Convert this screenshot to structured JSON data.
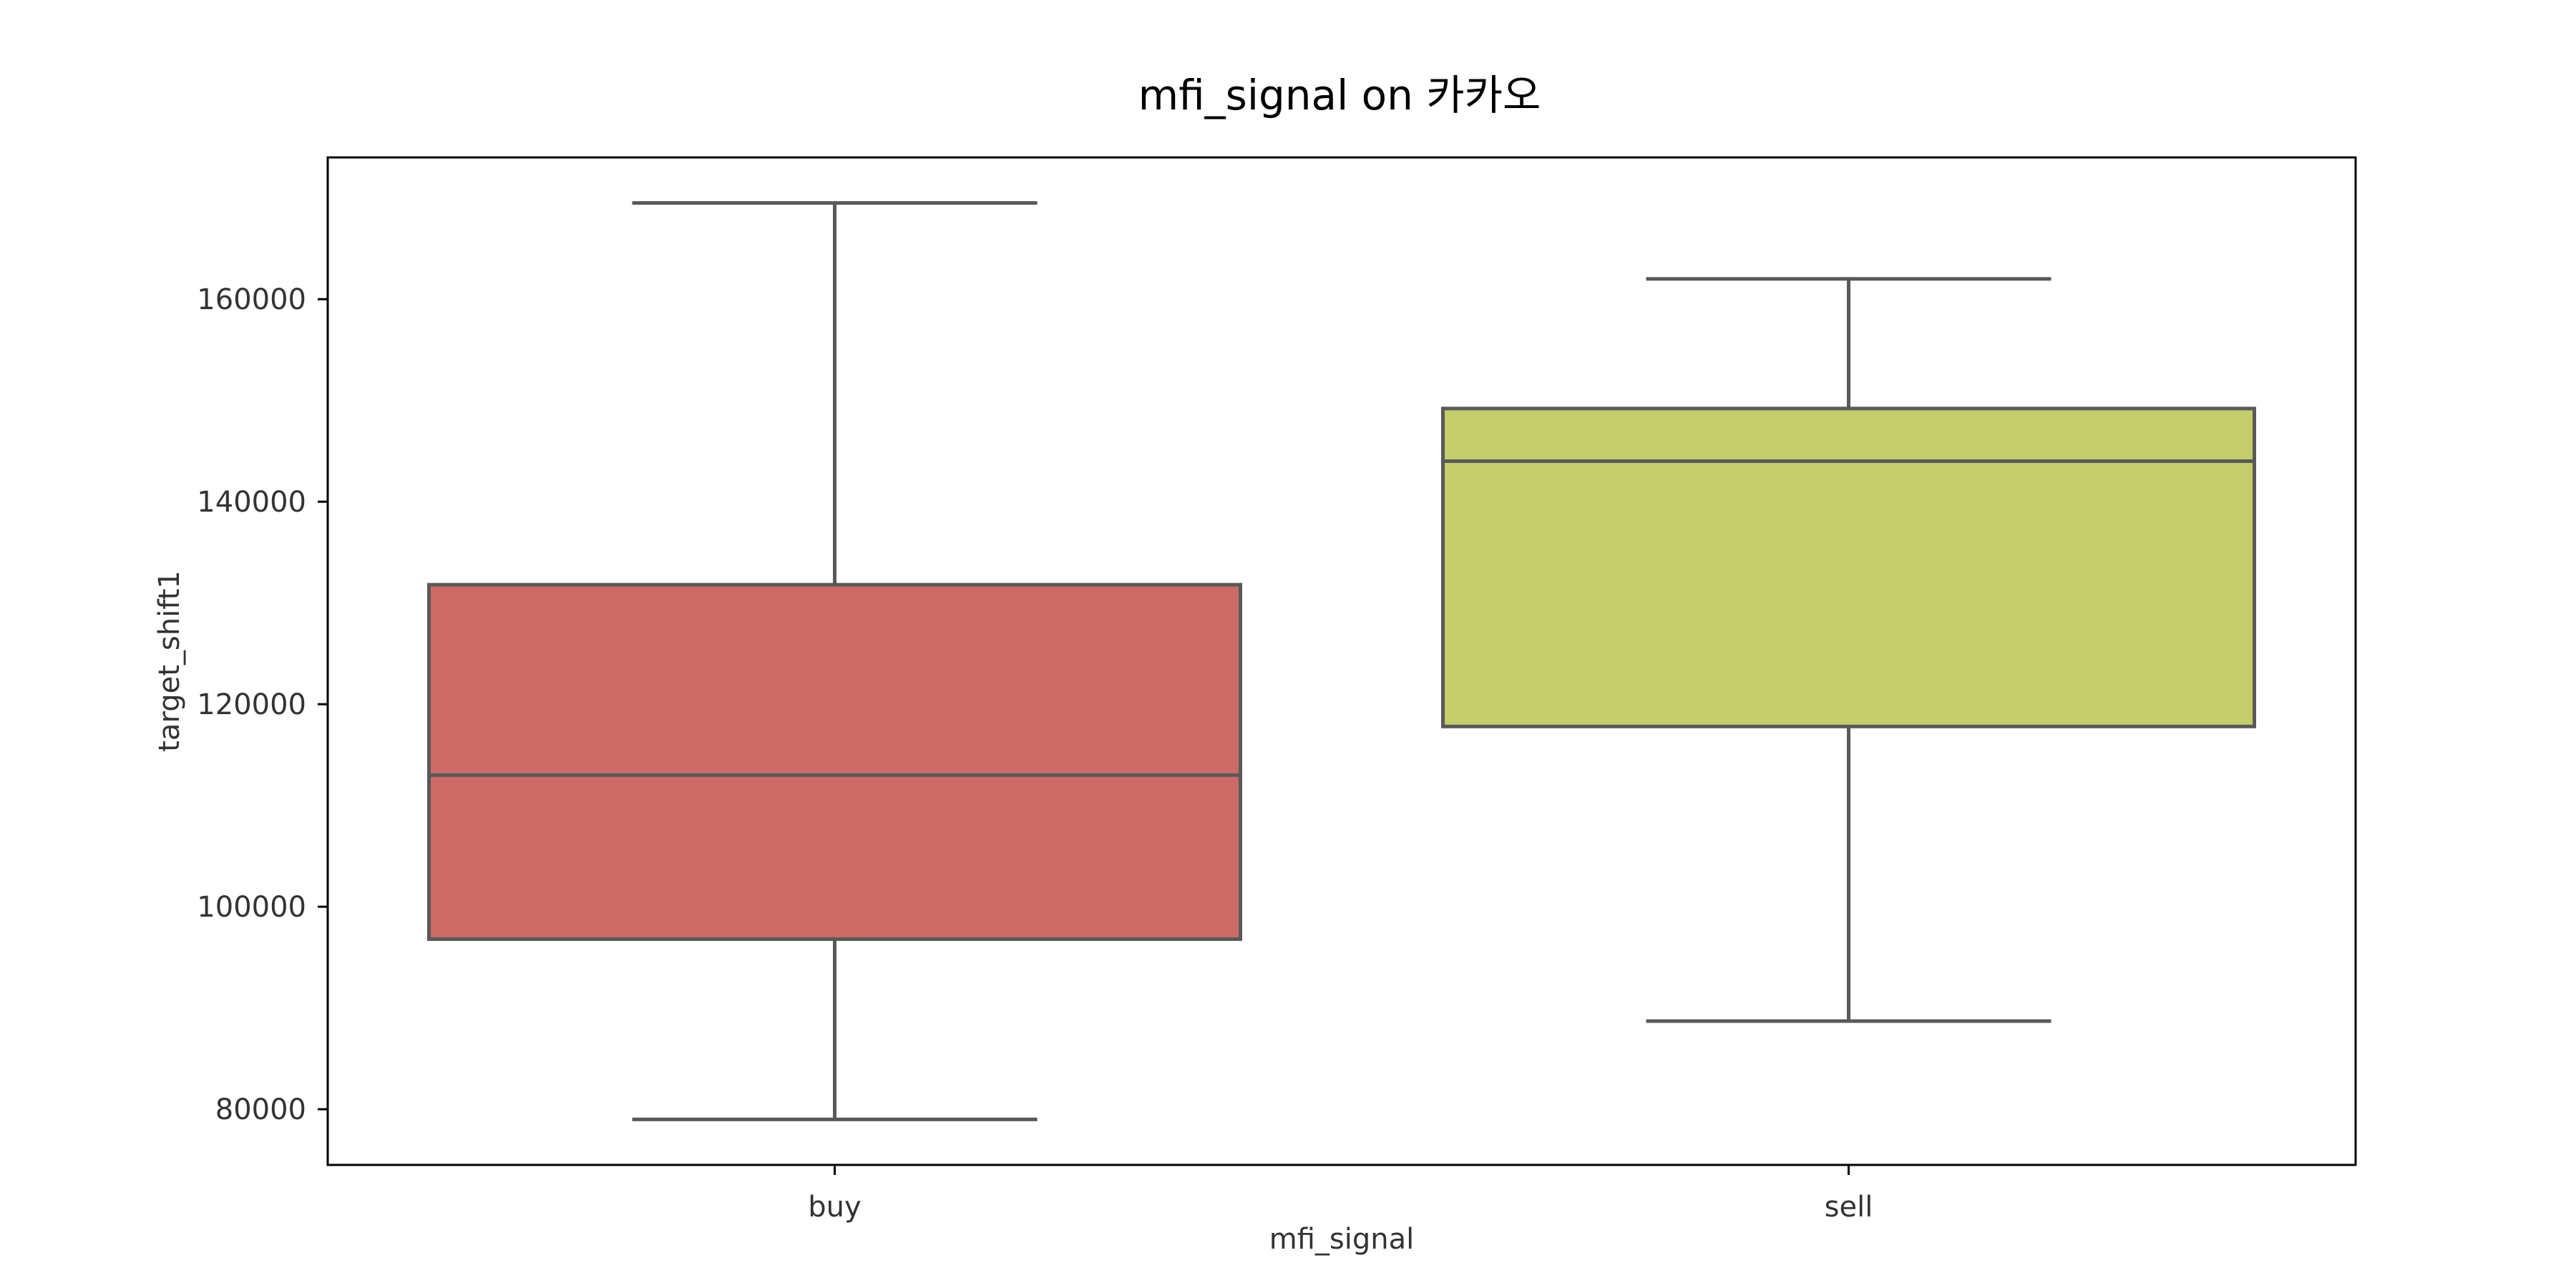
{
  "chart_data": {
    "type": "box",
    "title": "mfi_signal on 카카오",
    "xlabel": "mfi_signal",
    "ylabel": "target_shift1",
    "categories": [
      "buy",
      "sell"
    ],
    "boxes": [
      {
        "category": "buy",
        "whisker_low": 79000,
        "q1": 96800,
        "median": 113000,
        "q3": 131800,
        "whisker_high": 169500,
        "color": "#cc6b66"
      },
      {
        "category": "sell",
        "whisker_low": 88700,
        "q1": 117800,
        "median": 144000,
        "q3": 149200,
        "whisker_high": 162000,
        "color": "#c5cc6a"
      }
    ],
    "yticks": [
      80000,
      100000,
      120000,
      140000,
      160000
    ],
    "ytick_labels": [
      "80000",
      "100000",
      "120000",
      "140000",
      "160000"
    ],
    "ylim": [
      74500,
      174000
    ],
    "grid": false,
    "line_color": "#595959"
  }
}
